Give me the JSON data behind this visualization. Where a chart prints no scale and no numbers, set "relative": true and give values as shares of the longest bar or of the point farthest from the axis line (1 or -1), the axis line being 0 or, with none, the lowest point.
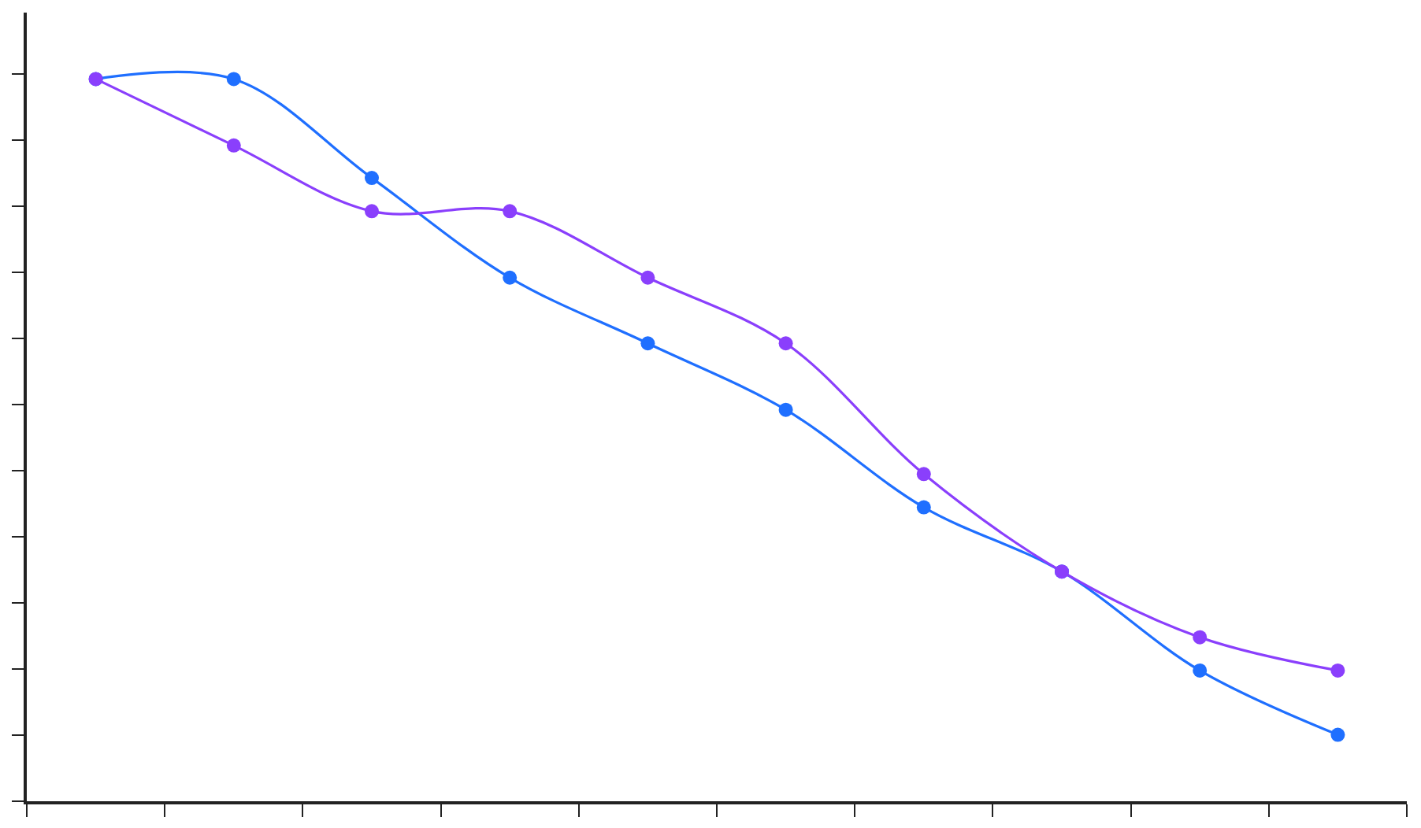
{
  "chart_data": {
    "type": "line",
    "relative": true,
    "categories": [
      null,
      null,
      null,
      null,
      null,
      null,
      null,
      null,
      null,
      null
    ],
    "series": [
      {
        "color": "#1f6fff",
        "values": [
          1,
          1,
          0.863,
          0.725,
          0.634,
          0.542,
          0.407,
          0.318,
          0.181,
          0.092
        ]
      },
      {
        "color": "#8a3ffc",
        "values": [
          1,
          0.908,
          0.817,
          0.817,
          0.725,
          0.634,
          0.453,
          0.318,
          0.227,
          0.181
        ]
      }
    ],
    "marker": "circle",
    "line_style": "solid"
  }
}
